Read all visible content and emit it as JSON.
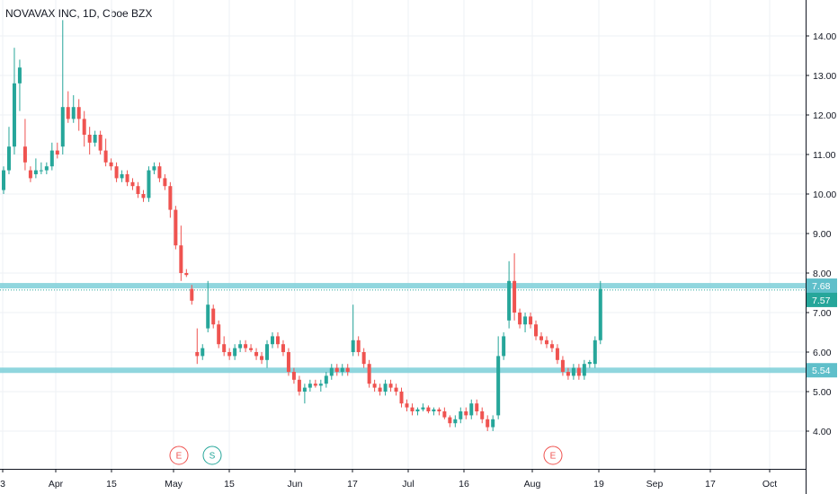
{
  "header": {
    "title": "NOVAVAX INC, 1D, Cboe BZX"
  },
  "colors": {
    "up": "#26a69a",
    "down": "#ef5350",
    "level_line": "#7ccfd8",
    "badge_bg": "#5fbfca",
    "grid": "#eef0f4"
  },
  "chart_data": {
    "type": "candlestick",
    "ylim": [
      3.0,
      15.0
    ],
    "y_ticks": [
      "4.00",
      "5.00",
      "6.00",
      "7.00",
      "8.00",
      "9.00",
      "10.00",
      "11.00",
      "12.00",
      "13.00",
      "14.00"
    ],
    "x_ticks": [
      "3",
      "Apr",
      "15",
      "May",
      "15",
      "Jun",
      "17",
      "Jul",
      "16",
      "Aug",
      "19",
      "Sep",
      "17",
      "Oct"
    ],
    "level_lines": [
      {
        "value": 7.68,
        "label": "7.68"
      },
      {
        "value": 5.54,
        "label": "5.54"
      }
    ],
    "last_price": {
      "value": 7.57,
      "label": "7.57"
    },
    "event_markers": [
      {
        "label": "E",
        "type": "earnings"
      },
      {
        "label": "S",
        "type": "split"
      },
      {
        "label": "E",
        "type": "earnings"
      }
    ],
    "candles": [
      [
        10.1,
        10.7,
        10.0,
        10.6
      ],
      [
        10.6,
        11.7,
        10.5,
        11.2
      ],
      [
        11.2,
        13.7,
        11.0,
        12.8
      ],
      [
        12.8,
        13.4,
        12.1,
        13.2
      ],
      [
        11.2,
        11.9,
        10.6,
        10.8
      ],
      [
        10.6,
        10.7,
        10.3,
        10.4
      ],
      [
        10.5,
        10.9,
        10.4,
        10.6
      ],
      [
        10.6,
        10.8,
        10.5,
        10.6
      ],
      [
        10.6,
        10.8,
        10.5,
        10.7
      ],
      [
        10.7,
        11.3,
        10.6,
        11.1
      ],
      [
        11.1,
        11.3,
        10.9,
        11.0
      ],
      [
        11.2,
        14.4,
        11.0,
        12.2
      ],
      [
        12.2,
        12.6,
        11.8,
        11.9
      ],
      [
        11.9,
        12.5,
        11.8,
        12.2
      ],
      [
        12.2,
        12.4,
        11.6,
        11.9
      ],
      [
        11.9,
        12.1,
        11.2,
        11.5
      ],
      [
        11.5,
        11.7,
        11.0,
        11.3
      ],
      [
        11.3,
        11.6,
        11.2,
        11.5
      ],
      [
        11.5,
        11.6,
        11.0,
        11.1
      ],
      [
        11.1,
        11.4,
        10.7,
        10.8
      ],
      [
        10.8,
        10.9,
        10.6,
        10.7
      ],
      [
        10.7,
        10.8,
        10.3,
        10.4
      ],
      [
        10.4,
        10.6,
        10.3,
        10.5
      ],
      [
        10.5,
        10.6,
        10.2,
        10.3
      ],
      [
        10.3,
        10.4,
        10.1,
        10.2
      ],
      [
        10.2,
        10.3,
        9.9,
        10.0
      ],
      [
        10.0,
        10.1,
        9.8,
        9.9
      ],
      [
        9.9,
        10.7,
        9.8,
        10.6
      ],
      [
        10.6,
        10.8,
        10.5,
        10.7
      ],
      [
        10.7,
        10.8,
        10.3,
        10.4
      ],
      [
        10.4,
        10.5,
        10.1,
        10.2
      ],
      [
        10.2,
        10.3,
        9.4,
        9.6
      ],
      [
        9.6,
        9.7,
        8.6,
        8.7
      ],
      [
        8.7,
        9.2,
        7.8,
        8.0
      ],
      [
        8.0,
        8.1,
        7.9,
        7.95
      ],
      [
        7.6,
        7.7,
        7.2,
        7.3
      ],
      [
        6.0,
        6.6,
        5.7,
        5.9
      ],
      [
        5.9,
        6.2,
        5.8,
        6.1
      ],
      [
        6.6,
        7.8,
        6.5,
        7.2
      ],
      [
        7.1,
        7.2,
        6.6,
        6.7
      ],
      [
        6.7,
        6.8,
        6.1,
        6.2
      ],
      [
        6.2,
        6.4,
        5.9,
        6.0
      ],
      [
        6.0,
        6.1,
        5.8,
        5.9
      ],
      [
        5.9,
        6.2,
        5.8,
        6.1
      ],
      [
        6.1,
        6.3,
        6.0,
        6.2
      ],
      [
        6.2,
        6.3,
        6.0,
        6.1
      ],
      [
        6.1,
        6.2,
        6.0,
        6.05
      ],
      [
        6.0,
        6.1,
        5.8,
        5.9
      ],
      [
        5.9,
        6.0,
        5.7,
        5.8
      ],
      [
        5.8,
        6.3,
        5.6,
        6.2
      ],
      [
        6.2,
        6.5,
        6.1,
        6.4
      ],
      [
        6.4,
        6.5,
        6.1,
        6.2
      ],
      [
        6.2,
        6.3,
        5.9,
        6.0
      ],
      [
        6.0,
        6.1,
        5.4,
        5.5
      ],
      [
        5.5,
        5.6,
        5.2,
        5.3
      ],
      [
        5.3,
        5.4,
        4.9,
        5.0
      ],
      [
        5.0,
        5.2,
        4.7,
        5.1
      ],
      [
        5.1,
        5.3,
        5.0,
        5.2
      ],
      [
        5.2,
        5.3,
        5.1,
        5.15
      ],
      [
        5.15,
        5.3,
        5.0,
        5.2
      ],
      [
        5.2,
        5.5,
        5.1,
        5.4
      ],
      [
        5.4,
        5.7,
        5.3,
        5.6
      ],
      [
        5.6,
        5.7,
        5.4,
        5.5
      ],
      [
        5.5,
        5.7,
        5.4,
        5.6
      ],
      [
        5.6,
        5.7,
        5.4,
        5.5
      ],
      [
        6.0,
        7.2,
        5.9,
        6.3
      ],
      [
        6.3,
        6.4,
        5.9,
        6.0
      ],
      [
        6.0,
        6.1,
        5.6,
        5.7
      ],
      [
        5.7,
        5.8,
        5.1,
        5.2
      ],
      [
        5.2,
        5.3,
        5.0,
        5.1
      ],
      [
        5.1,
        5.2,
        4.9,
        5.0
      ],
      [
        5.0,
        5.3,
        4.9,
        5.2
      ],
      [
        5.2,
        5.3,
        5.0,
        5.1
      ],
      [
        5.1,
        5.2,
        4.9,
        5.0
      ],
      [
        5.0,
        5.1,
        4.6,
        4.7
      ],
      [
        4.7,
        4.8,
        4.5,
        4.6
      ],
      [
        4.6,
        4.7,
        4.4,
        4.5
      ],
      [
        4.5,
        4.6,
        4.4,
        4.55
      ],
      [
        4.55,
        4.7,
        4.5,
        4.6
      ],
      [
        4.6,
        4.65,
        4.45,
        4.5
      ],
      [
        4.5,
        4.6,
        4.4,
        4.55
      ],
      [
        4.55,
        4.6,
        4.4,
        4.5
      ],
      [
        4.5,
        4.6,
        4.3,
        4.35
      ],
      [
        4.35,
        4.4,
        4.1,
        4.2
      ],
      [
        4.2,
        4.4,
        4.1,
        4.3
      ],
      [
        4.3,
        4.6,
        4.2,
        4.5
      ],
      [
        4.5,
        4.6,
        4.3,
        4.4
      ],
      [
        4.4,
        4.8,
        4.3,
        4.7
      ],
      [
        4.7,
        4.8,
        4.4,
        4.5
      ],
      [
        4.5,
        4.6,
        4.2,
        4.3
      ],
      [
        4.3,
        4.4,
        4.0,
        4.1
      ],
      [
        4.1,
        4.4,
        4.0,
        4.3
      ],
      [
        4.4,
        6.4,
        4.3,
        5.9
      ],
      [
        5.9,
        6.5,
        5.8,
        6.4
      ],
      [
        6.8,
        8.3,
        6.6,
        7.8
      ],
      [
        7.8,
        8.5,
        6.8,
        7.0
      ],
      [
        7.0,
        7.1,
        6.6,
        6.7
      ],
      [
        6.7,
        7.0,
        6.5,
        6.9
      ],
      [
        6.9,
        7.0,
        6.6,
        6.7
      ],
      [
        6.7,
        6.8,
        6.3,
        6.4
      ],
      [
        6.4,
        6.5,
        6.2,
        6.3
      ],
      [
        6.3,
        6.4,
        6.1,
        6.2
      ],
      [
        6.2,
        6.3,
        6.0,
        6.1
      ],
      [
        6.1,
        6.2,
        5.7,
        5.8
      ],
      [
        5.8,
        5.9,
        5.4,
        5.5
      ],
      [
        5.5,
        5.6,
        5.3,
        5.4
      ],
      [
        5.4,
        5.7,
        5.3,
        5.6
      ],
      [
        5.6,
        5.7,
        5.3,
        5.4
      ],
      [
        5.4,
        5.8,
        5.3,
        5.7
      ],
      [
        5.7,
        5.8,
        5.6,
        5.75
      ],
      [
        5.7,
        6.4,
        5.6,
        6.3
      ],
      [
        6.3,
        7.8,
        6.2,
        7.6
      ]
    ]
  }
}
